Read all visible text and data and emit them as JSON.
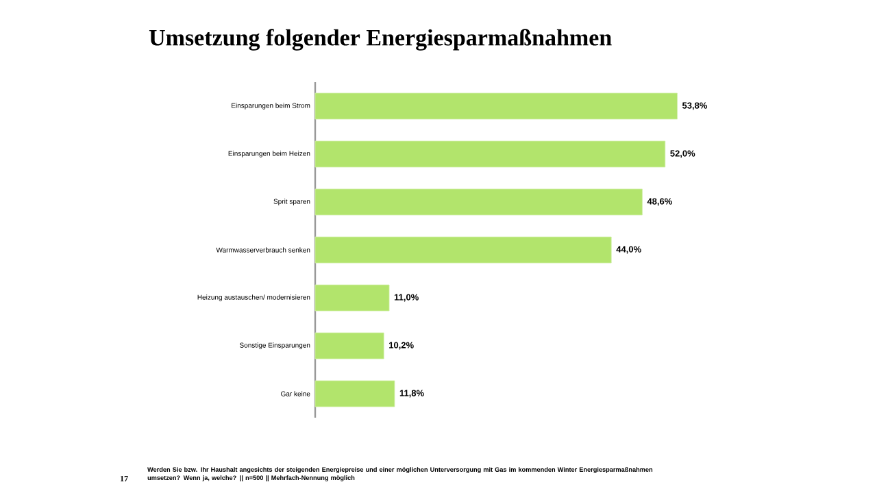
{
  "chart_data": {
    "type": "bar",
    "orientation": "horizontal",
    "title": "Umsetzung folgender Energiesparmaßnahmen",
    "categories": [
      "Einsparungen beim Strom",
      "Einsparungen beim Heizen",
      "Sprit sparen",
      "Warmwasserverbrauch senken",
      "Heizung austauschen/ modernisieren",
      "Sonstige Einsparungen",
      "Gar keine"
    ],
    "values": [
      53.8,
      52.0,
      48.6,
      44.0,
      11.0,
      10.2,
      11.8
    ],
    "value_labels": [
      "53,8%",
      "52,0%",
      "48,6%",
      "44,0%",
      "11,0%",
      "10,2%",
      "11,8%"
    ],
    "color": "#b2e46c",
    "annotations": [
      "Werden Sie bzw. Ihr Haushalt angesichts der steigenden Energiepreise und einer möglichen Unterversorgung mit Gas im kommenden Winter Energiesparmaßnahmen umsetzen? Wenn ja, welche? || n=500 || Mehrfach-Nennung möglich",
      "17"
    ]
  }
}
